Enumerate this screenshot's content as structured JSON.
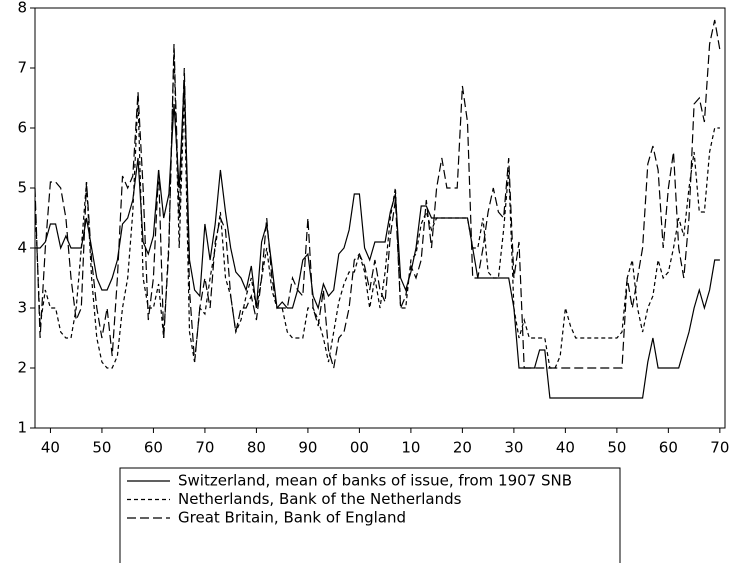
{
  "chart_data": {
    "type": "line",
    "x": [
      1837,
      1838,
      1839,
      1840,
      1841,
      1842,
      1843,
      1844,
      1845,
      1846,
      1847,
      1848,
      1849,
      1850,
      1851,
      1852,
      1853,
      1854,
      1855,
      1856,
      1857,
      1858,
      1859,
      1860,
      1861,
      1862,
      1863,
      1864,
      1865,
      1866,
      1867,
      1868,
      1869,
      1870,
      1871,
      1872,
      1873,
      1874,
      1875,
      1876,
      1877,
      1878,
      1879,
      1880,
      1881,
      1882,
      1883,
      1884,
      1885,
      1886,
      1887,
      1888,
      1889,
      1890,
      1891,
      1892,
      1893,
      1894,
      1895,
      1896,
      1897,
      1898,
      1899,
      1900,
      1901,
      1902,
      1903,
      1904,
      1905,
      1906,
      1907,
      1908,
      1909,
      1910,
      1911,
      1912,
      1913,
      1914,
      1915,
      1916,
      1917,
      1918,
      1919,
      1920,
      1921,
      1922,
      1923,
      1924,
      1925,
      1926,
      1927,
      1928,
      1929,
      1930,
      1931,
      1932,
      1933,
      1934,
      1935,
      1936,
      1937,
      1938,
      1939,
      1940,
      1941,
      1942,
      1943,
      1944,
      1945,
      1946,
      1947,
      1948,
      1949,
      1950,
      1951,
      1952,
      1953,
      1954,
      1955,
      1956,
      1957,
      1958,
      1959,
      1960,
      1961,
      1962,
      1963,
      1964,
      1965,
      1966,
      1967,
      1968,
      1969,
      1970
    ],
    "series": [
      {
        "name": "Switzerland, mean of banks of issue, from 1907 SNB",
        "color": "#000000",
        "dash": "none",
        "values": [
          4.0,
          4.0,
          4.1,
          4.4,
          4.4,
          4.0,
          4.2,
          4.0,
          4.0,
          4.0,
          4.5,
          4.0,
          3.5,
          3.3,
          3.3,
          3.5,
          3.8,
          4.4,
          4.5,
          4.8,
          5.5,
          4.1,
          3.9,
          4.2,
          5.3,
          4.5,
          4.9,
          6.4,
          5.0,
          6.8,
          3.8,
          3.3,
          3.2,
          4.4,
          3.8,
          4.4,
          5.3,
          4.6,
          4.0,
          3.6,
          3.5,
          3.3,
          3.7,
          3.0,
          4.1,
          4.4,
          3.7,
          3.0,
          3.1,
          3.0,
          3.0,
          3.3,
          3.8,
          3.9,
          3.2,
          3.0,
          3.4,
          3.2,
          3.3,
          3.9,
          4.0,
          4.3,
          4.9,
          4.9,
          4.0,
          3.8,
          4.1,
          4.1,
          4.1,
          4.6,
          4.9,
          3.5,
          3.3,
          3.6,
          4.0,
          4.7,
          4.7,
          4.5,
          4.5,
          4.5,
          4.5,
          4.5,
          4.5,
          4.5,
          4.5,
          4.0,
          3.5,
          3.5,
          3.5,
          3.5,
          3.5,
          3.5,
          3.5,
          3.0,
          2.0,
          2.0,
          2.0,
          2.0,
          2.3,
          2.3,
          1.5,
          1.5,
          1.5,
          1.5,
          1.5,
          1.5,
          1.5,
          1.5,
          1.5,
          1.5,
          1.5,
          1.5,
          1.5,
          1.5,
          1.5,
          1.5,
          1.5,
          1.5,
          1.5,
          2.1,
          2.5,
          2.0,
          2.0,
          2.0,
          2.0,
          2.0,
          2.3,
          2.6,
          3.0,
          3.3,
          3.0,
          3.3,
          3.8,
          3.8
        ]
      },
      {
        "name": "Netherlands, Bank of the Netherlands",
        "color": "#000000",
        "dash": "4,3",
        "values": [
          4.8,
          2.7,
          3.3,
          3.0,
          3.0,
          2.6,
          2.5,
          2.5,
          3.0,
          4.0,
          5.1,
          3.5,
          2.5,
          2.1,
          2.0,
          2.0,
          2.2,
          3.0,
          3.5,
          4.6,
          6.5,
          3.5,
          3.0,
          3.0,
          3.4,
          2.5,
          4.1,
          7.3,
          4.0,
          6.6,
          2.6,
          2.1,
          3.0,
          2.9,
          3.5,
          4.0,
          4.6,
          3.5,
          3.2,
          2.6,
          2.8,
          3.2,
          3.5,
          3.0,
          3.5,
          4.0,
          3.3,
          3.0,
          3.0,
          2.6,
          2.5,
          2.5,
          2.5,
          3.0,
          3.0,
          2.8,
          2.5,
          2.1,
          2.6,
          3.1,
          3.4,
          3.6,
          3.6,
          3.9,
          3.6,
          3.0,
          3.5,
          3.0,
          3.6,
          4.5,
          5.0,
          3.0,
          3.0,
          3.8,
          3.9,
          4.4,
          4.6,
          4.3,
          4.5,
          4.5,
          4.5,
          4.5,
          4.5,
          4.5,
          4.5,
          4.0,
          4.0,
          4.5,
          3.6,
          3.5,
          3.5,
          4.3,
          5.3,
          3.0,
          2.5,
          2.8,
          2.5,
          2.5,
          2.5,
          2.5,
          2.0,
          2.0,
          2.2,
          3.0,
          2.7,
          2.5,
          2.5,
          2.5,
          2.5,
          2.5,
          2.5,
          2.5,
          2.5,
          2.5,
          2.6,
          3.5,
          3.8,
          3.0,
          2.6,
          3.0,
          3.2,
          3.8,
          3.5,
          3.6,
          4.0,
          4.5,
          4.2,
          5.0,
          5.6,
          4.6,
          4.6,
          5.6,
          6.0,
          6.0
        ]
      },
      {
        "name": "Great Britain, Bank of England",
        "color": "#000000",
        "dash": "9,4",
        "values": [
          5.0,
          2.5,
          4.0,
          5.1,
          5.1,
          5.0,
          4.5,
          3.5,
          2.8,
          3.0,
          5.1,
          3.8,
          3.0,
          2.5,
          3.0,
          2.2,
          3.5,
          5.2,
          5.0,
          5.2,
          6.6,
          5.0,
          2.8,
          3.5,
          5.3,
          2.5,
          4.0,
          7.4,
          4.5,
          7.0,
          3.3,
          2.1,
          3.0,
          3.5,
          3.0,
          4.1,
          4.5,
          4.3,
          3.2,
          2.6,
          3.0,
          3.0,
          3.2,
          2.8,
          3.5,
          4.5,
          3.5,
          3.0,
          3.0,
          3.0,
          3.5,
          3.3,
          3.2,
          4.5,
          3.0,
          2.7,
          3.3,
          2.3,
          2.0,
          2.5,
          2.6,
          3.0,
          3.8,
          3.9,
          3.7,
          3.3,
          3.8,
          3.3,
          3.1,
          4.2,
          4.8,
          3.0,
          3.2,
          3.7,
          3.5,
          3.8,
          4.8,
          4.0,
          5.0,
          5.5,
          5.0,
          5.0,
          5.0,
          6.7,
          6.1,
          3.5,
          3.5,
          4.0,
          4.6,
          5.0,
          4.6,
          4.5,
          5.5,
          3.5,
          4.1,
          2.0,
          2.0,
          2.0,
          2.0,
          2.0,
          2.0,
          2.0,
          2.0,
          2.0,
          2.0,
          2.0,
          2.0,
          2.0,
          2.0,
          2.0,
          2.0,
          2.0,
          2.0,
          2.0,
          2.0,
          3.5,
          3.0,
          3.5,
          4.0,
          5.4,
          5.7,
          5.3,
          4.0,
          5.0,
          5.6,
          4.0,
          3.5,
          4.5,
          6.4,
          6.5,
          6.1,
          7.4,
          7.8,
          7.3
        ]
      }
    ],
    "xlim": [
      1837,
      1971
    ],
    "xticks": [
      {
        "value": 1840,
        "label": "40"
      },
      {
        "value": 1850,
        "label": "50"
      },
      {
        "value": 1860,
        "label": "60"
      },
      {
        "value": 1870,
        "label": "70"
      },
      {
        "value": 1880,
        "label": "80"
      },
      {
        "value": 1890,
        "label": "90"
      },
      {
        "value": 1900,
        "label": "00"
      },
      {
        "value": 1910,
        "label": "10"
      },
      {
        "value": 1920,
        "label": "20"
      },
      {
        "value": 1930,
        "label": "30"
      },
      {
        "value": 1940,
        "label": "40"
      },
      {
        "value": 1950,
        "label": "50"
      },
      {
        "value": 1960,
        "label": "60"
      },
      {
        "value": 1970,
        "label": "70"
      }
    ],
    "ylim": [
      1,
      8
    ],
    "yticks": [
      1,
      2,
      3,
      4,
      5,
      6,
      7,
      8
    ]
  }
}
